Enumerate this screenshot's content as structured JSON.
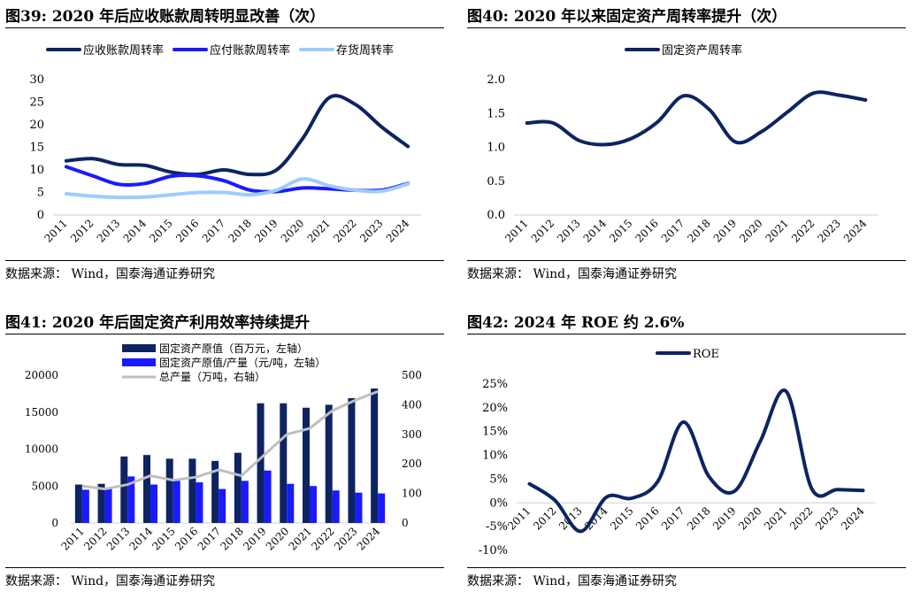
{
  "colors": {
    "navy": "#0d2461",
    "blue": "#1a1aff",
    "lightblue": "#9ecbff",
    "gray": "#bfbfbf"
  },
  "panels": [
    {
      "title": "图39:  2020 年后应收账款周转明显改善（次）",
      "source": "数据来源：  Wind，国泰海通证券研究"
    },
    {
      "title": "图40:  2020 年以来固定资产周转率提升（次）",
      "source": "数据来源：  Wind，国泰海通证券研究"
    },
    {
      "title": "图41:  2020 年后固定资产利用效率持续提升",
      "source": "数据来源：  Wind，国泰海通证券研究"
    },
    {
      "title": "图42:  2024 年 ROE 约 2.6%",
      "source": "数据来源：  Wind，国泰海通证券研究"
    }
  ],
  "chart_data": [
    {
      "type": "line",
      "x": [
        "2011",
        "2012",
        "2013",
        "2014",
        "2015",
        "2016",
        "2017",
        "2018",
        "2019",
        "2020",
        "2021",
        "2022",
        "2023",
        "2024"
      ],
      "ylim": [
        0,
        30
      ],
      "yticks": [
        0,
        5,
        10,
        15,
        20,
        25,
        30
      ],
      "legend_position": "top",
      "grid": false,
      "series": [
        {
          "name": "应收账款周转率",
          "color": "#0d2461",
          "values": [
            12.0,
            12.5,
            11.2,
            11.0,
            9.5,
            9.0,
            10.0,
            9.0,
            10.0,
            17.0,
            26.0,
            24.5,
            19.5,
            15.2
          ]
        },
        {
          "name": "应付账款周转率",
          "color": "#1a1aff",
          "values": [
            10.7,
            8.7,
            6.8,
            7.0,
            8.6,
            8.7,
            7.6,
            5.5,
            5.2,
            6.0,
            5.8,
            5.5,
            5.5,
            7.0
          ]
        },
        {
          "name": "存货周转率",
          "color": "#9ecbff",
          "values": [
            4.7,
            4.2,
            3.9,
            4.0,
            4.5,
            5.0,
            5.0,
            4.5,
            5.5,
            8.0,
            6.5,
            5.5,
            5.3,
            6.9
          ]
        }
      ]
    },
    {
      "type": "line",
      "x": [
        "2011",
        "2012",
        "2013",
        "2014",
        "2015",
        "2016",
        "2017",
        "2018",
        "2019",
        "2020",
        "2021",
        "2022",
        "2023",
        "2024"
      ],
      "ylim": [
        0,
        2.0
      ],
      "yticks": [
        "0.0",
        "0.5",
        "1.0",
        "1.5",
        "2.0"
      ],
      "legend_position": "top",
      "grid": false,
      "series": [
        {
          "name": "固定资产周转率",
          "color": "#0d2461",
          "values": [
            1.36,
            1.36,
            1.1,
            1.04,
            1.13,
            1.37,
            1.76,
            1.56,
            1.08,
            1.23,
            1.52,
            1.8,
            1.77,
            1.7
          ]
        }
      ]
    },
    {
      "type": "bar",
      "categories": [
        "2011",
        "2012",
        "2013",
        "2014",
        "2015",
        "2016",
        "2017",
        "2018",
        "2019",
        "2020",
        "2021",
        "2022",
        "2023",
        "2024"
      ],
      "ylim": [
        0,
        20000
      ],
      "yticks": [
        0,
        5000,
        10000,
        15000,
        20000
      ],
      "y2lim": [
        0,
        500
      ],
      "y2ticks": [
        0,
        100,
        200,
        300,
        400,
        500
      ],
      "legend_position": "top",
      "grid": false,
      "series": [
        {
          "name": "固定资产原值（百万元，左轴）",
          "type": "bar",
          "axis": "left",
          "color": "#0d2461",
          "values": [
            5200,
            5300,
            9000,
            9200,
            8700,
            8700,
            8400,
            9500,
            16200,
            16200,
            15600,
            16000,
            16900,
            18200
          ]
        },
        {
          "name": "固定资产原值/产量（元/吨，左轴）",
          "type": "bar",
          "axis": "left",
          "color": "#1a1aff",
          "values": [
            4500,
            4600,
            6300,
            5200,
            5700,
            5500,
            4600,
            5700,
            7100,
            5300,
            5000,
            4400,
            4100,
            4000
          ]
        },
        {
          "name": "总产量（万吨，右轴）",
          "type": "line",
          "axis": "right",
          "color": "#bfbfbf",
          "values": [
            125,
            115,
            130,
            160,
            145,
            155,
            180,
            160,
            230,
            300,
            320,
            380,
            415,
            445
          ]
        }
      ]
    },
    {
      "type": "line",
      "x": [
        "2011",
        "2012",
        "2013",
        "2014",
        "2015",
        "2016",
        "2017",
        "2018",
        "2019",
        "2020",
        "2021",
        "2022",
        "2023",
        "2024"
      ],
      "ylim": [
        -10,
        25
      ],
      "yticks": [
        "-10%",
        "-5%",
        "0%",
        "5%",
        "10%",
        "15%",
        "20%",
        "25%"
      ],
      "legend_position": "top",
      "grid": false,
      "series": [
        {
          "name": "ROE",
          "color": "#0d2461",
          "values": [
            4.0,
            0.5,
            -6.0,
            1.2,
            1.0,
            4.5,
            17.0,
            5.5,
            2.5,
            13.0,
            23.5,
            3.0,
            2.8,
            2.6
          ]
        }
      ]
    }
  ]
}
